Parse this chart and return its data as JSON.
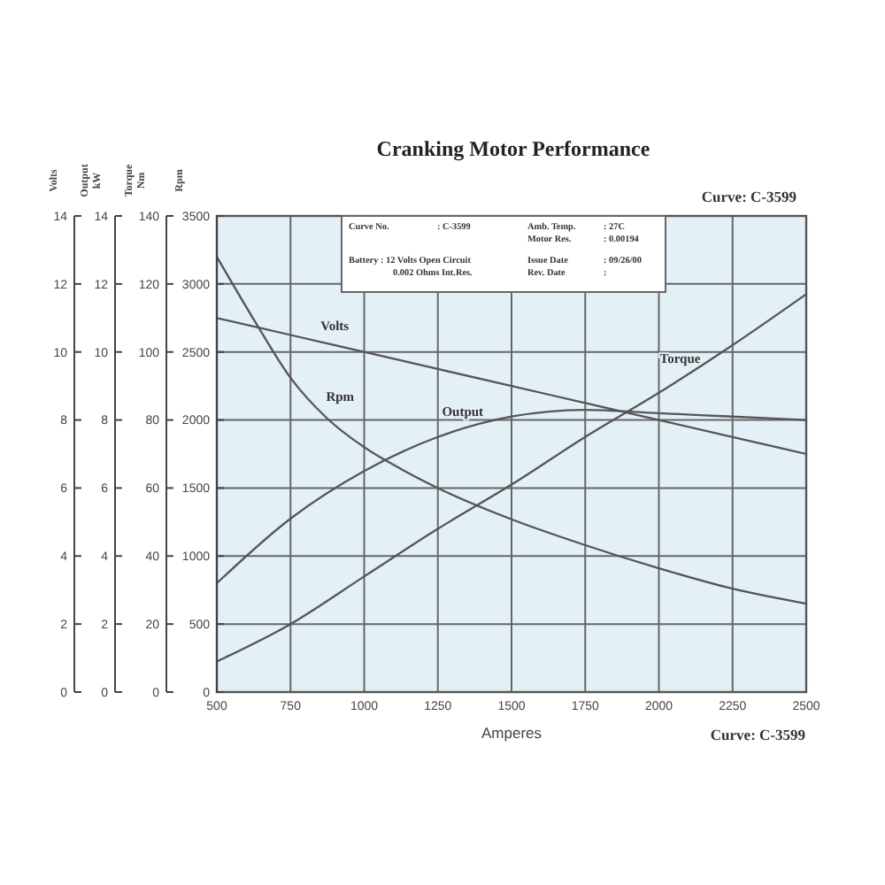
{
  "chart_data": {
    "type": "line",
    "title": "Cranking Motor Performance",
    "xlabel": "Amperes",
    "ylabel": "Rpm",
    "y2label": "Torque Nm",
    "y3label": "Output kW",
    "x": [
      500,
      750,
      1000,
      1250,
      1500,
      1750,
      2000,
      2250,
      2500
    ],
    "xlim": [
      500,
      2500
    ],
    "xticks": [
      500,
      750,
      1000,
      1250,
      1500,
      1750,
      2000,
      2250,
      2500
    ],
    "ylim": [
      0,
      3500
    ],
    "yticks": [
      0,
      500,
      1000,
      1500,
      2000,
      2500,
      3000,
      3500
    ],
    "y2lim": [
      0,
      140
    ],
    "y2ticks": [
      0,
      20,
      40,
      60,
      80,
      100,
      120,
      140
    ],
    "y3lim": [
      0,
      14
    ],
    "y3ticks": [
      0,
      2,
      4,
      6,
      8,
      10,
      12,
      14
    ],
    "grid": true,
    "series": [
      {
        "name": "Volts",
        "color": "#555555",
        "axis": "y3",
        "values": [
          11,
          10.5,
          10,
          9.5,
          9,
          8.5,
          8,
          7.5,
          7
        ]
      },
      {
        "name": "Rpm",
        "color": "#555555",
        "x": [
          500,
          625,
          750,
          875,
          1000,
          1125,
          1250,
          1500,
          1750,
          2000,
          2250,
          2500
        ],
        "values": [
          3200,
          2740,
          2310,
          2010,
          1800,
          1640,
          1500,
          1270,
          1080,
          910,
          760,
          650
        ]
      },
      {
        "name": "Output",
        "color": "#555555",
        "axis": "y3",
        "values": [
          3.2,
          5.1,
          6.5,
          7.5,
          8.1,
          8.3,
          8.2,
          8.1,
          8.0
        ]
      },
      {
        "name": "Torque",
        "color": "#555555",
        "axis": "y2",
        "values": [
          9,
          20,
          34,
          48,
          61,
          75,
          88,
          102,
          117
        ]
      }
    ],
    "annotations": [
      "Volts",
      "0",
      "2",
      "4",
      "6",
      "8",
      "10",
      "12",
      "14",
      "Curve: C-3599",
      "Curve: C-3599",
      "Curve No.\t: C-3599",
      "Amb. Temp.\t: 27C",
      "Motor Res.\t: 0.00194",
      "Battery : 12 Volts Open Circuit",
      "0.002 Ohms Int.Res.",
      "Issue Date\t: 09/26/00",
      "Rev. Date\t:"
    ]
  }
}
